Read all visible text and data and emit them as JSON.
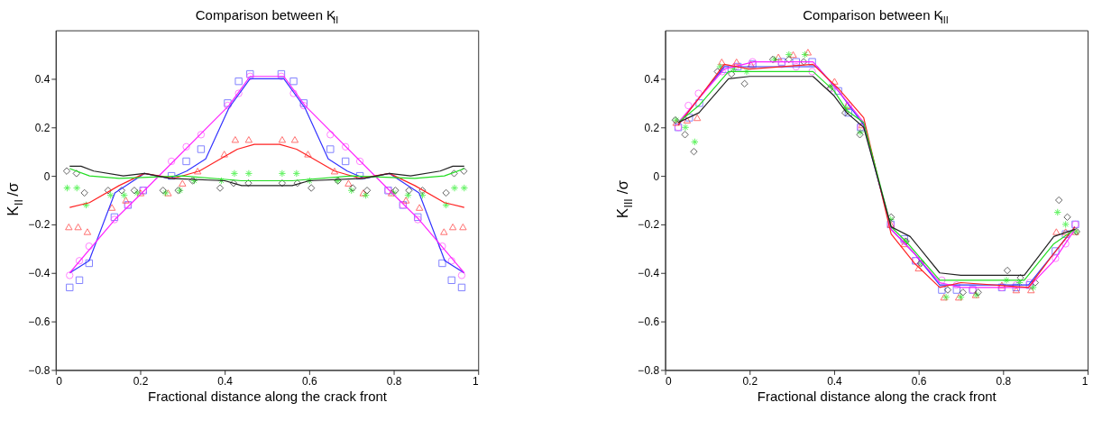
{
  "chart_data": [
    {
      "type": "scatter",
      "title": "Comparison between K$_{II}$",
      "xlabel": "Fractional distance along the crack front",
      "ylabel": "K$_{II}$/σ",
      "xlim": [
        0,
        1
      ],
      "ylim": [
        -0.8,
        0.6
      ],
      "xticks": [
        0,
        0.2,
        0.4,
        0.6,
        0.8,
        1
      ],
      "yticks": [
        -0.8,
        -0.6,
        -0.4,
        -0.2,
        0,
        0.2,
        0.4
      ],
      "grid": false,
      "series": [
        {
          "marker": "square",
          "color": "#4d4dff",
          "x": [
            0.033,
            0.056,
            0.079,
            0.139,
            0.171,
            0.207,
            0.274,
            0.309,
            0.344,
            0.407,
            0.433,
            0.46,
            0.534,
            0.563,
            0.587,
            0.65,
            0.686,
            0.72,
            0.787,
            0.822,
            0.857,
            0.915,
            0.937,
            0.961
          ],
          "values": [
            -0.46,
            -0.43,
            -0.36,
            -0.17,
            -0.12,
            -0.06,
            0,
            0.06,
            0.11,
            0.3,
            0.39,
            0.42,
            0.42,
            0.39,
            0.3,
            0.11,
            0.06,
            0,
            -0.06,
            -0.12,
            -0.17,
            -0.36,
            -0.43,
            -0.46
          ]
        },
        {
          "marker": "circle",
          "color": "#ff4dff",
          "x": [
            0.033,
            0.056,
            0.079,
            0.139,
            0.171,
            0.207,
            0.274,
            0.309,
            0.344,
            0.407,
            0.433,
            0.46,
            0.534,
            0.563,
            0.587,
            0.65,
            0.686,
            0.72,
            0.787,
            0.822,
            0.857,
            0.915,
            0.937,
            0.961
          ],
          "values": [
            -0.41,
            -0.35,
            -0.29,
            -0.18,
            -0.12,
            -0.06,
            0.06,
            0.12,
            0.17,
            0.29,
            0.34,
            0.41,
            0.41,
            0.34,
            0.29,
            0.17,
            0.12,
            0.06,
            -0.06,
            -0.12,
            -0.18,
            -0.29,
            -0.35,
            -0.41
          ]
        },
        {
          "marker": "triangle",
          "color": "#ff3333",
          "x": [
            0.031,
            0.053,
            0.075,
            0.133,
            0.166,
            0.201,
            0.266,
            0.3,
            0.336,
            0.399,
            0.425,
            0.457,
            0.536,
            0.566,
            0.597,
            0.66,
            0.693,
            0.728,
            0.795,
            0.829,
            0.861,
            0.919,
            0.94,
            0.964
          ],
          "values": [
            -0.21,
            -0.21,
            -0.23,
            -0.13,
            -0.1,
            -0.07,
            -0.07,
            -0.03,
            0.02,
            0.09,
            0.15,
            0.15,
            0.15,
            0.15,
            0.09,
            0.02,
            -0.03,
            -0.07,
            -0.07,
            -0.1,
            -0.13,
            -0.23,
            -0.21,
            -0.21
          ]
        },
        {
          "marker": "cross",
          "color": "#22ee22",
          "x": [
            0.027,
            0.05,
            0.072,
            0.13,
            0.162,
            0.193,
            0.26,
            0.294,
            0.328,
            0.392,
            0.423,
            0.457,
            0.536,
            0.57,
            0.601,
            0.667,
            0.7,
            0.734,
            0.8,
            0.834,
            0.868,
            0.924,
            0.944,
            0.967
          ],
          "values": [
            -0.05,
            -0.05,
            -0.12,
            -0.08,
            -0.08,
            -0.07,
            -0.07,
            -0.06,
            -0.02,
            -0.02,
            0.01,
            0.01,
            0.01,
            0.01,
            -0.02,
            -0.02,
            -0.06,
            -0.08,
            -0.07,
            -0.08,
            -0.08,
            -0.12,
            -0.05,
            -0.05
          ]
        },
        {
          "marker": "diamond",
          "color": "#222222",
          "x": [
            0.026,
            0.049,
            0.068,
            0.124,
            0.156,
            0.186,
            0.254,
            0.29,
            0.324,
            0.389,
            0.421,
            0.456,
            0.536,
            0.572,
            0.605,
            0.668,
            0.703,
            0.737,
            0.804,
            0.836,
            0.868,
            0.924,
            0.943,
            0.966
          ],
          "values": [
            0.02,
            0.01,
            -0.07,
            -0.06,
            -0.06,
            -0.06,
            -0.06,
            -0.06,
            -0.02,
            -0.05,
            -0.03,
            -0.03,
            -0.03,
            -0.03,
            -0.05,
            -0.02,
            -0.05,
            -0.06,
            -0.06,
            -0.06,
            -0.06,
            -0.07,
            0.01,
            0.02
          ]
        },
        {
          "type": "line",
          "color": "#3333ff",
          "x": [
            0.033,
            0.079,
            0.14,
            0.21,
            0.27,
            0.31,
            0.355,
            0.41,
            0.46,
            0.54,
            0.59,
            0.645,
            0.69,
            0.73,
            0.79,
            0.86,
            0.921,
            0.967
          ],
          "values": [
            -0.4,
            -0.35,
            -0.07,
            0.01,
            -0.01,
            0.02,
            0.07,
            0.28,
            0.4,
            0.4,
            0.28,
            0.07,
            0.02,
            -0.01,
            0.01,
            -0.07,
            -0.35,
            -0.4
          ]
        },
        {
          "type": "line",
          "color": "#ff22ff",
          "x": [
            0.033,
            0.14,
            0.21,
            0.41,
            0.46,
            0.54,
            0.59,
            0.79,
            0.86,
            0.967
          ],
          "values": [
            -0.4,
            -0.18,
            -0.06,
            0.29,
            0.41,
            0.41,
            0.29,
            -0.06,
            -0.18,
            -0.4
          ]
        },
        {
          "type": "line",
          "color": "#ff2222",
          "x": [
            0.033,
            0.08,
            0.15,
            0.21,
            0.28,
            0.34,
            0.4,
            0.43,
            0.47,
            0.53,
            0.57,
            0.6,
            0.66,
            0.72,
            0.79,
            0.85,
            0.92,
            0.967
          ],
          "values": [
            -0.13,
            -0.11,
            -0.04,
            0.01,
            -0.01,
            0.02,
            0.08,
            0.11,
            0.13,
            0.13,
            0.11,
            0.08,
            0.02,
            -0.01,
            0.01,
            -0.04,
            -0.11,
            -0.13
          ]
        },
        {
          "type": "line",
          "color": "#22dd22",
          "x": [
            0.033,
            0.08,
            0.15,
            0.3,
            0.44,
            0.56,
            0.7,
            0.85,
            0.92,
            0.967
          ],
          "values": [
            0.03,
            0,
            -0.01,
            0,
            -0.02,
            -0.02,
            0,
            -0.01,
            0,
            0.03
          ]
        },
        {
          "type": "line",
          "color": "#222222",
          "x": [
            0.033,
            0.06,
            0.09,
            0.16,
            0.21,
            0.27,
            0.4,
            0.44,
            0.56,
            0.6,
            0.73,
            0.79,
            0.84,
            0.91,
            0.94,
            0.967
          ],
          "values": [
            0.04,
            0.04,
            0.02,
            0,
            0.01,
            -0.01,
            -0.02,
            -0.04,
            -0.04,
            -0.02,
            -0.01,
            0.01,
            0,
            0.02,
            0.04,
            0.04
          ]
        }
      ]
    },
    {
      "type": "scatter",
      "title": "Comparison between K$_{III}$",
      "xlabel": "Fractional distance along the crack front",
      "ylabel": "K$_{III}$/σ",
      "xlim": [
        0,
        1
      ],
      "ylim": [
        -0.8,
        0.6
      ],
      "xticks": [
        0,
        0.2,
        0.4,
        0.6,
        0.8,
        1
      ],
      "yticks": [
        -0.8,
        -0.6,
        -0.4,
        -0.2,
        0,
        0.2,
        0.4
      ],
      "grid": false,
      "series": [
        {
          "marker": "square",
          "color": "#4d4dff",
          "x": [
            0.031,
            0.057,
            0.081,
            0.141,
            0.172,
            0.207,
            0.276,
            0.31,
            0.348,
            0.41,
            0.434,
            0.463,
            0.534,
            0.566,
            0.593,
            0.655,
            0.69,
            0.728,
            0.797,
            0.831,
            0.863,
            0.924,
            0.948,
            0.971
          ],
          "values": [
            0.2,
            0.24,
            0.3,
            0.44,
            0.45,
            0.46,
            0.47,
            0.47,
            0.47,
            0.35,
            0.26,
            0.2,
            -0.2,
            -0.26,
            -0.35,
            -0.47,
            -0.47,
            -0.47,
            -0.46,
            -0.46,
            -0.45,
            -0.31,
            -0.24,
            -0.2
          ]
        },
        {
          "marker": "circle",
          "color": "#ff4dff",
          "x": [
            0.031,
            0.055,
            0.079,
            0.135,
            0.166,
            0.207,
            0.276,
            0.31,
            0.348,
            0.393,
            0.434,
            0.463,
            0.534,
            0.566,
            0.593,
            0.655,
            0.69,
            0.728,
            0.797,
            0.831,
            0.863,
            0.924,
            0.948,
            0.971
          ],
          "values": [
            0.2,
            0.29,
            0.34,
            0.43,
            0.45,
            0.47,
            0.46,
            0.45,
            0.43,
            0.36,
            0.29,
            0.2,
            -0.2,
            -0.27,
            -0.35,
            -0.43,
            -0.45,
            -0.47,
            -0.46,
            -0.45,
            -0.44,
            -0.34,
            -0.28,
            -0.2
          ]
        },
        {
          "marker": "triangle",
          "color": "#ff3333",
          "x": [
            0.026,
            0.052,
            0.076,
            0.134,
            0.169,
            0.203,
            0.268,
            0.303,
            0.338,
            0.401,
            0.431,
            0.466,
            0.534,
            0.566,
            0.6,
            0.66,
            0.695,
            0.735,
            0.797,
            0.831,
            0.866,
            0.926,
            0.948,
            0.971
          ],
          "values": [
            0.22,
            0.23,
            0.24,
            0.47,
            0.47,
            0.46,
            0.49,
            0.5,
            0.51,
            0.39,
            0.29,
            0.21,
            -0.2,
            -0.28,
            -0.38,
            -0.5,
            -0.5,
            -0.49,
            -0.45,
            -0.47,
            -0.47,
            -0.23,
            -0.23,
            -0.23
          ]
        },
        {
          "marker": "cross",
          "color": "#22ee22",
          "x": [
            0.026,
            0.048,
            0.07,
            0.13,
            0.162,
            0.193,
            0.259,
            0.293,
            0.331,
            0.393,
            0.428,
            0.462,
            0.534,
            0.569,
            0.607,
            0.665,
            0.7,
            0.737,
            0.808,
            0.839,
            0.871,
            0.929,
            0.948,
            0.972
          ],
          "values": [
            0.23,
            0.2,
            0.14,
            0.45,
            0.44,
            0.43,
            0.48,
            0.5,
            0.5,
            0.37,
            0.28,
            0.18,
            -0.18,
            -0.27,
            -0.36,
            -0.5,
            -0.5,
            -0.49,
            -0.43,
            -0.44,
            -0.46,
            -0.15,
            -0.2,
            -0.23
          ]
        },
        {
          "marker": "diamond",
          "color": "#222222",
          "x": [
            0.024,
            0.047,
            0.068,
            0.124,
            0.157,
            0.188,
            0.255,
            0.293,
            0.328,
            0.39,
            0.426,
            0.461,
            0.535,
            0.57,
            0.605,
            0.669,
            0.705,
            0.741,
            0.81,
            0.841,
            0.876,
            0.932,
            0.952,
            0.974
          ],
          "values": [
            0.23,
            0.17,
            0.1,
            0.43,
            0.42,
            0.38,
            0.48,
            0.48,
            0.47,
            0.36,
            0.26,
            0.17,
            -0.17,
            -0.27,
            -0.36,
            -0.47,
            -0.48,
            -0.48,
            -0.39,
            -0.42,
            -0.44,
            -0.1,
            -0.17,
            -0.23
          ]
        },
        {
          "type": "line",
          "color": "#3333ff",
          "x": [
            0.031,
            0.08,
            0.14,
            0.2,
            0.36,
            0.41,
            0.47,
            0.535,
            0.59,
            0.65,
            0.7,
            0.86,
            0.92,
            0.97
          ],
          "values": [
            0.21,
            0.32,
            0.45,
            0.45,
            0.45,
            0.35,
            0.21,
            -0.22,
            -0.32,
            -0.45,
            -0.45,
            -0.45,
            -0.32,
            -0.21
          ]
        },
        {
          "type": "line",
          "color": "#ff22ff",
          "x": [
            0.031,
            0.08,
            0.14,
            0.21,
            0.35,
            0.41,
            0.47,
            0.535,
            0.59,
            0.65,
            0.7,
            0.86,
            0.92,
            0.97
          ],
          "values": [
            0.22,
            0.32,
            0.44,
            0.47,
            0.47,
            0.35,
            0.22,
            -0.22,
            -0.32,
            -0.44,
            -0.46,
            -0.46,
            -0.35,
            -0.22
          ]
        },
        {
          "type": "line",
          "color": "#ff2222",
          "x": [
            0.031,
            0.08,
            0.14,
            0.2,
            0.35,
            0.41,
            0.47,
            0.535,
            0.59,
            0.65,
            0.7,
            0.86,
            0.92,
            0.97
          ],
          "values": [
            0.21,
            0.32,
            0.46,
            0.44,
            0.46,
            0.36,
            0.24,
            -0.24,
            -0.36,
            -0.46,
            -0.44,
            -0.46,
            -0.32,
            -0.21
          ]
        },
        {
          "type": "line",
          "color": "#22dd22",
          "x": [
            0.031,
            0.08,
            0.15,
            0.2,
            0.35,
            0.4,
            0.43,
            0.47,
            0.535,
            0.57,
            0.65,
            0.7,
            0.85,
            0.92,
            0.97
          ],
          "values": [
            0.22,
            0.29,
            0.43,
            0.43,
            0.43,
            0.35,
            0.27,
            0.22,
            -0.21,
            -0.27,
            -0.43,
            -0.43,
            -0.43,
            -0.28,
            -0.22
          ]
        },
        {
          "type": "line",
          "color": "#222222",
          "x": [
            0.031,
            0.08,
            0.15,
            0.2,
            0.35,
            0.4,
            0.43,
            0.47,
            0.535,
            0.58,
            0.65,
            0.7,
            0.85,
            0.92,
            0.97
          ],
          "values": [
            0.22,
            0.26,
            0.4,
            0.41,
            0.41,
            0.33,
            0.26,
            0.2,
            -0.21,
            -0.25,
            -0.4,
            -0.41,
            -0.41,
            -0.25,
            -0.22
          ]
        }
      ]
    }
  ]
}
